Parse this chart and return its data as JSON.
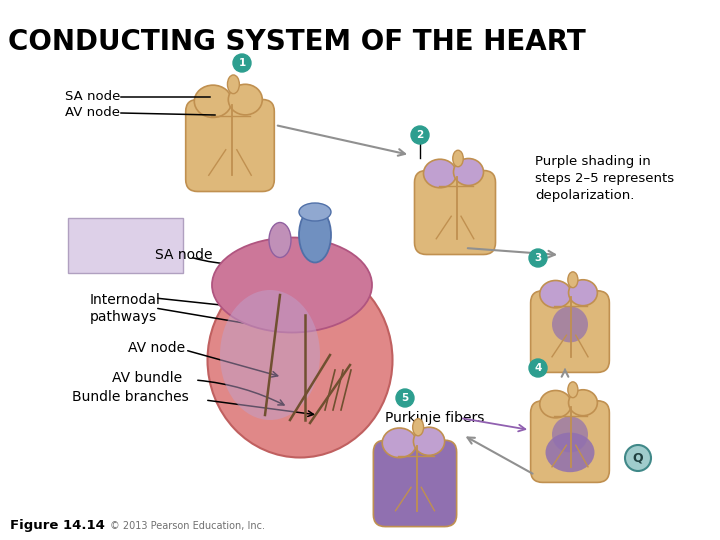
{
  "title": "CONDUCTING SYSTEM OF THE HEART",
  "title_fontsize": 20,
  "title_color": "#000000",
  "background_color": "#ffffff",
  "labels": {
    "sa_node_top": "SA node",
    "av_node_top": "AV node",
    "sa_node_main": "SA node",
    "internodal": "Internodal\npathways",
    "av_node_main": "AV node",
    "av_bundle": "AV bundle",
    "bundle_branches": "Bundle branches",
    "purkinje": "Purkinje fibers",
    "figure": "Figure 14.14",
    "copyright": "© 2013 Pearson Education, Inc.",
    "purple_box_text": "Purple shading in\nsteps 2–5 represents\ndepolarization."
  },
  "step_color": "#2d9e8f",
  "purple_box_color": "#ddd0e8",
  "arrow_gray": "#909090",
  "arrow_purple": "#9060b0",
  "tan_heart": "#deb87a",
  "tan_dark": "#c09050",
  "pink_main": "#e08888",
  "pink_atria": "#cc7799",
  "blue_vessel": "#7090c0",
  "purple_shade": "#9070b0",
  "purple_light": "#c0a0d0",
  "line_color": "#705030"
}
